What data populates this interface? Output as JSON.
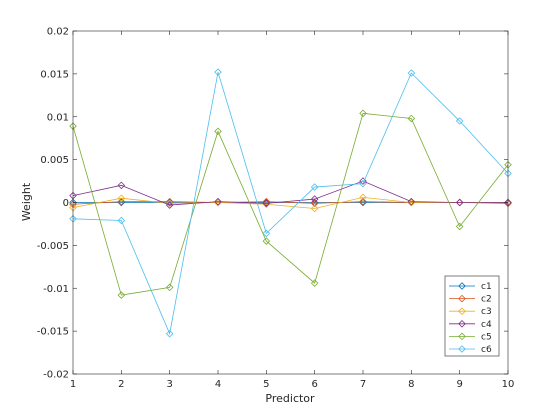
{
  "chart_data": {
    "type": "line",
    "title": "",
    "xlabel": "Predictor",
    "ylabel": "Weight",
    "xlim": [
      1,
      10
    ],
    "ylim": [
      -0.02,
      0.02
    ],
    "x": [
      1,
      2,
      3,
      4,
      5,
      6,
      7,
      8,
      9,
      10
    ],
    "xticks": [
      "1",
      "2",
      "3",
      "4",
      "5",
      "6",
      "7",
      "8",
      "9",
      "10"
    ],
    "yticks": [
      "-0.02",
      "-0.015",
      "-0.01",
      "-0.005",
      "0",
      "0.005",
      "0.01",
      "0.015",
      "0.02"
    ],
    "ytick_values": [
      -0.02,
      -0.015,
      -0.01,
      -0.005,
      0,
      0.005,
      0.01,
      0.015,
      0.02
    ],
    "grid": false,
    "legend_position": "bottom-right",
    "marker": "diamond",
    "series": [
      {
        "name": "c1",
        "color": "#0072BD",
        "values": [
          0.0,
          0.0,
          0.0,
          0.0,
          0.0,
          0.0,
          0.0,
          0.0,
          0.0,
          0.0
        ]
      },
      {
        "name": "c2",
        "color": "#D95319",
        "values": [
          -0.0002,
          0.0001,
          0.0001,
          0.0,
          0.0001,
          -0.0001,
          0.0001,
          0.0,
          0.0,
          -0.0001
        ]
      },
      {
        "name": "c3",
        "color": "#EDB120",
        "values": [
          -0.0006,
          0.0005,
          -0.0001,
          0.0,
          -0.0002,
          -0.0007,
          0.0006,
          0.0,
          0.0,
          0.0
        ]
      },
      {
        "name": "c4",
        "color": "#7E2F8E",
        "values": [
          0.0008,
          0.002,
          -0.0003,
          0.0001,
          -0.0001,
          0.0004,
          0.0025,
          0.0001,
          0.0,
          0.0
        ]
      },
      {
        "name": "c5",
        "color": "#77AC30",
        "values": [
          0.0089,
          -0.0108,
          -0.0099,
          0.0083,
          -0.0045,
          -0.0094,
          0.0104,
          0.0098,
          -0.0028,
          0.0044
        ]
      },
      {
        "name": "c6",
        "color": "#4DBEEE",
        "values": [
          -0.0019,
          -0.0021,
          -0.0153,
          0.0152,
          -0.0036,
          0.0018,
          0.0022,
          0.0151,
          0.0095,
          0.0034
        ]
      }
    ]
  }
}
